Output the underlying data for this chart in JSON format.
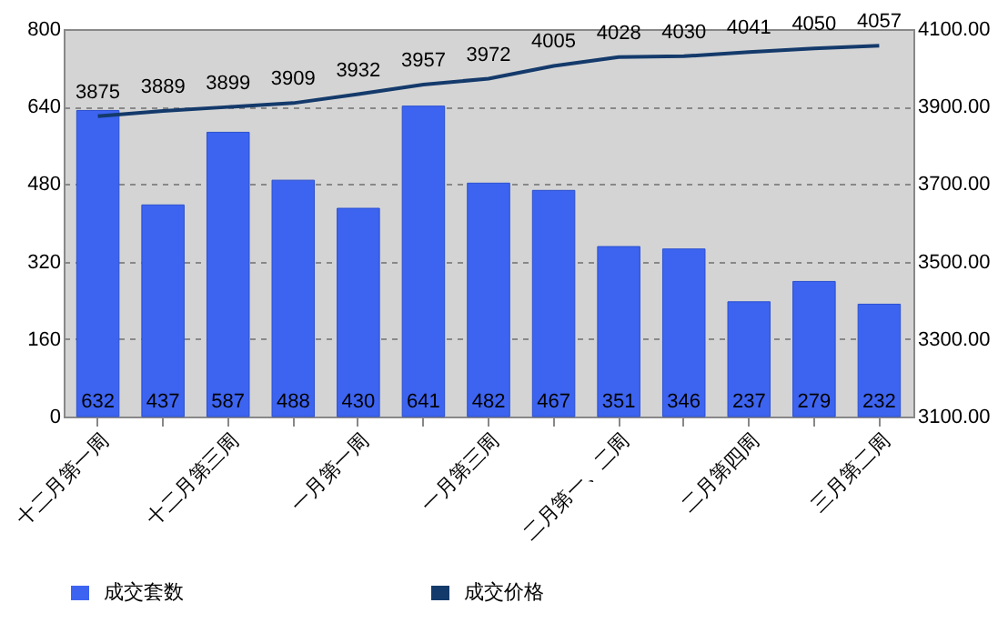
{
  "chart_data": {
    "type": "bar",
    "categories": [
      "十二月第一周",
      null,
      "十二月第三周",
      null,
      "一月第一周",
      null,
      "一月第三周",
      null,
      "二月第一、二周",
      null,
      "二月第四周",
      null,
      "三月第二周"
    ],
    "series": [
      {
        "name": "成交套数",
        "color": "#3d64f0",
        "values": [
          632,
          437,
          587,
          488,
          430,
          641,
          482,
          467,
          351,
          346,
          237,
          279,
          232
        ]
      },
      {
        "name": "成交价格",
        "type": "line",
        "axis": "y2",
        "color": "#143a6b",
        "values": [
          3875,
          3889,
          3899,
          3909,
          3932,
          3957,
          3972,
          4005,
          4028,
          4030,
          4041,
          4050,
          4057
        ]
      }
    ],
    "ylim": [
      0,
      800
    ],
    "yticks": [
      0,
      160,
      320,
      480,
      640,
      800
    ],
    "y2lim": [
      3100,
      4100
    ],
    "y2ticks": [
      {
        "value": 3100,
        "label": "3100.00"
      },
      {
        "value": 3300,
        "label": "3300.00"
      },
      {
        "value": 3500,
        "label": "3500.00"
      },
      {
        "value": 3700,
        "label": "3700.00"
      },
      {
        "value": 3900,
        "label": "3900.00"
      },
      {
        "value": 4100,
        "label": "4100.00"
      }
    ],
    "grid": "y",
    "legend": "bottom",
    "data_labels": true,
    "marker": "none",
    "line_style": "solid"
  }
}
